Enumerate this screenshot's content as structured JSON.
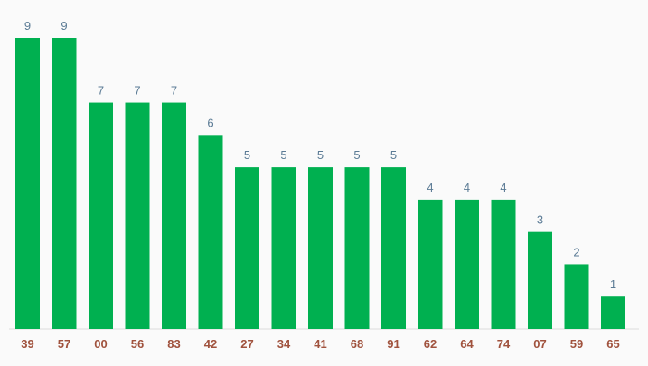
{
  "chart_data": {
    "type": "bar",
    "categories": [
      "39",
      "57",
      "00",
      "56",
      "83",
      "42",
      "27",
      "34",
      "41",
      "68",
      "91",
      "62",
      "64",
      "74",
      "07",
      "59",
      "65"
    ],
    "values": [
      9,
      9,
      7,
      7,
      7,
      6,
      5,
      5,
      5,
      5,
      5,
      4,
      4,
      4,
      3,
      2,
      1
    ],
    "ylim": [
      0,
      9
    ],
    "grid": false,
    "legend": "none",
    "colors": {
      "bar": "#00b050",
      "value_label": "#5b7b95",
      "category_label": "#a0523d",
      "axis_line": "#dcdcdc",
      "background": "#fafafa"
    }
  }
}
